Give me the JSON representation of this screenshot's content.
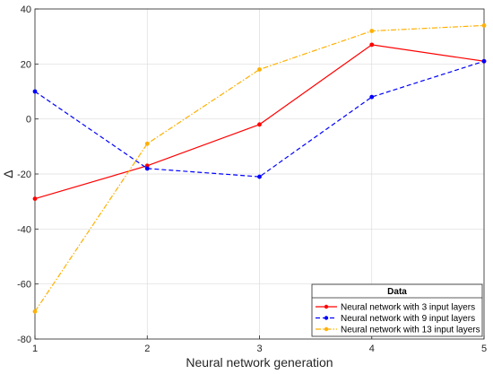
{
  "chart_data": {
    "type": "line",
    "xlabel": "Neural network generation",
    "ylabel": "Δ",
    "xlim": [
      1,
      5
    ],
    "ylim": [
      -80,
      40
    ],
    "x_ticks": [
      "1",
      "2",
      "3",
      "4",
      "5"
    ],
    "y_ticks": [
      "-80",
      "-60",
      "-40",
      "-20",
      "0",
      "20",
      "40"
    ],
    "grid": true,
    "legend_title": "Data",
    "legend_position": "bottom-right",
    "x": [
      1,
      2,
      3,
      4,
      5
    ],
    "series": [
      {
        "name": "Neural network with 3 input layers",
        "color": "#ff0000",
        "dash": "solid",
        "values": [
          -29,
          -17,
          -2,
          27,
          21
        ]
      },
      {
        "name": "Neural network with 9 input layers",
        "color": "#0000ff",
        "dash": "dashed",
        "values": [
          10,
          -18,
          -21,
          8,
          21
        ]
      },
      {
        "name": "Neural network with 13 input layers",
        "color": "#ffb000",
        "dash": "dashdot",
        "values": [
          -70,
          -9,
          18,
          32,
          34
        ]
      }
    ]
  }
}
